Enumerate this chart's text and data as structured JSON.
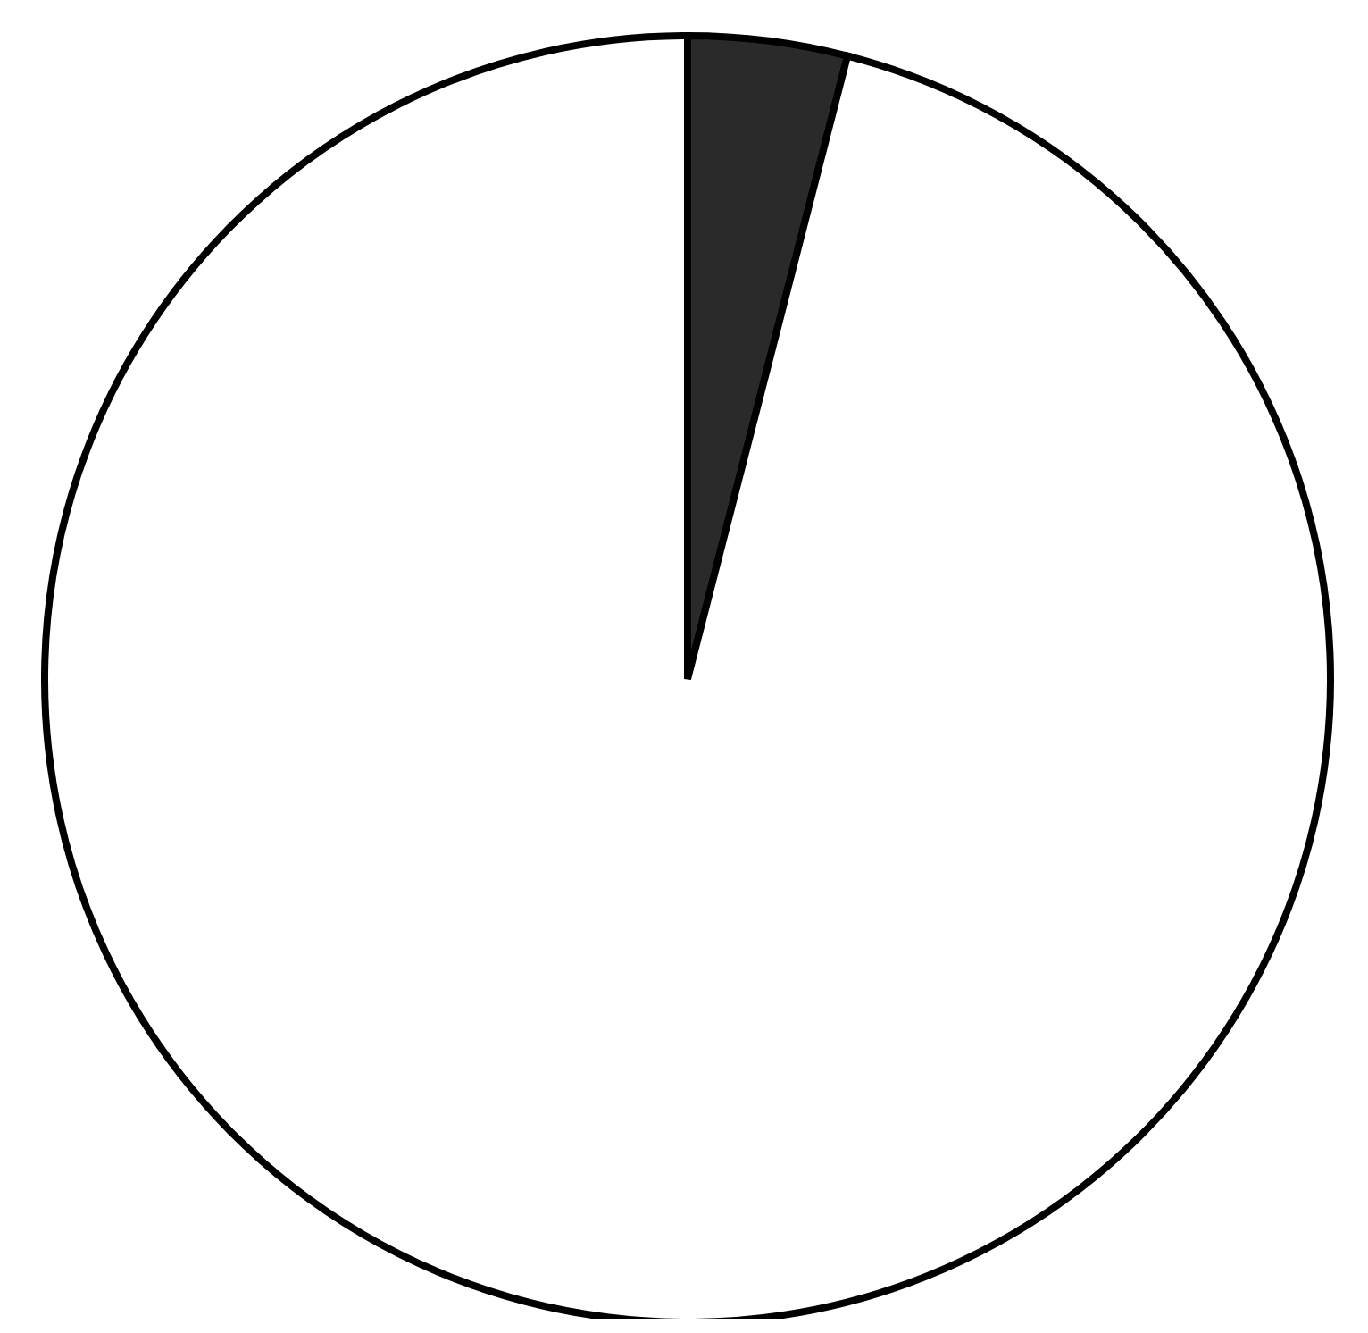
{
  "chart_data": {
    "type": "pie",
    "categories": [
      null,
      null
    ],
    "values": [
      4,
      96
    ],
    "colors": [
      "#2a2a2a",
      "#ffffff"
    ],
    "legend": false
  }
}
